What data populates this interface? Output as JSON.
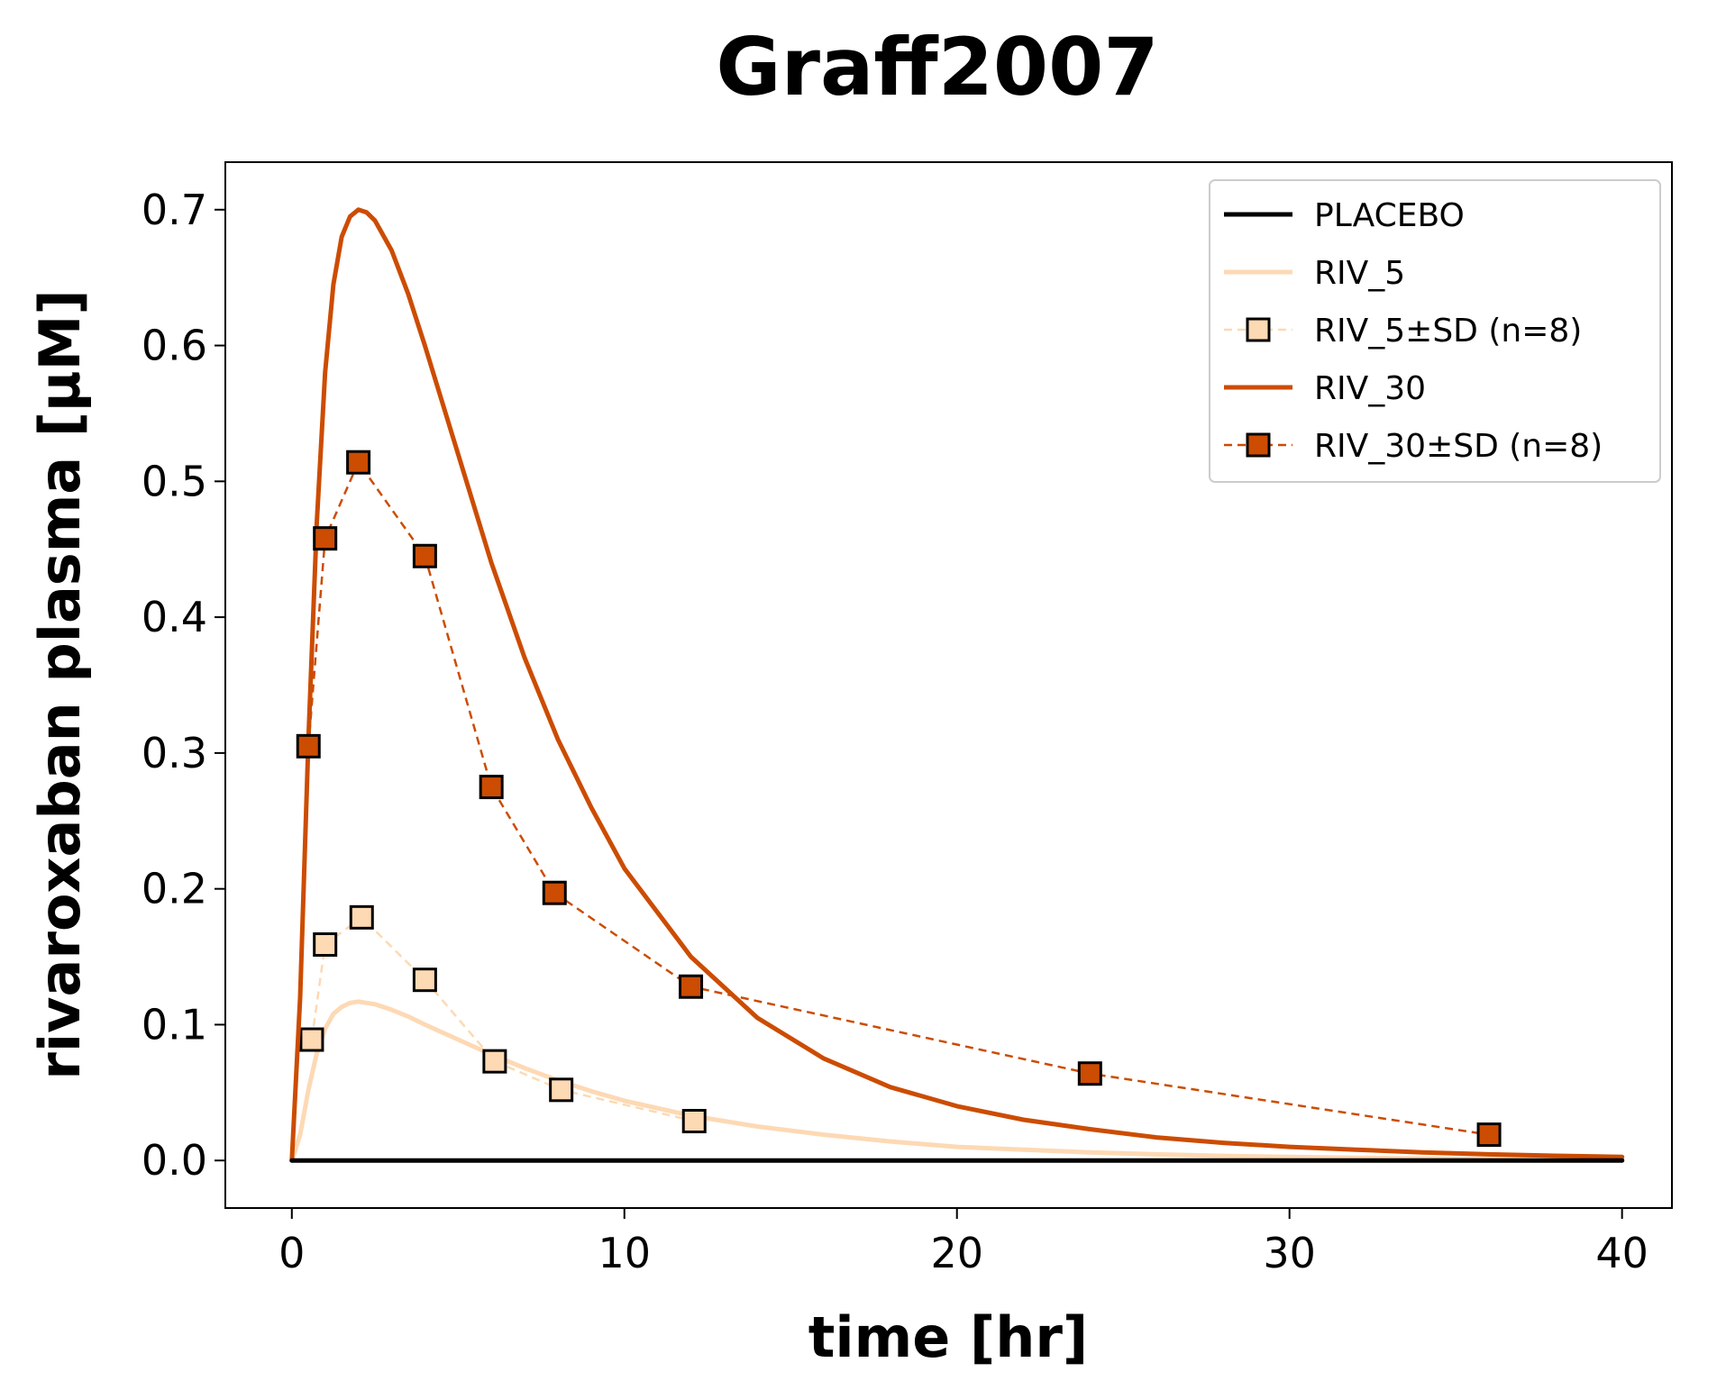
{
  "chart_data": {
    "type": "line",
    "title": "Graff2007",
    "xlabel": "time [hr]",
    "ylabel": "rivaroxaban plasma [µM]",
    "xlim": [
      -2,
      41.5
    ],
    "ylim": [
      -0.035,
      0.735
    ],
    "xticks": [
      0,
      10,
      20,
      30,
      40
    ],
    "yticks": [
      0.0,
      0.1,
      0.2,
      0.3,
      0.4,
      0.5,
      0.6,
      0.7
    ],
    "grid": false,
    "legend_position": "top-right",
    "series": [
      {
        "name": "PLACEBO",
        "kind": "line",
        "color": "#000000",
        "x": [
          0,
          40
        ],
        "y": [
          0,
          0
        ]
      },
      {
        "name": "RIV_5",
        "kind": "line",
        "color": "#fdd9b4",
        "x": [
          0,
          0.25,
          0.5,
          0.75,
          1,
          1.25,
          1.5,
          1.75,
          2,
          2.25,
          2.5,
          3,
          3.5,
          4,
          5,
          6,
          7,
          8,
          9,
          10,
          12,
          14,
          16,
          18,
          20,
          22,
          24,
          26,
          28,
          30,
          32,
          34,
          36,
          38,
          40
        ],
        "y": [
          0,
          0.019,
          0.052,
          0.079,
          0.097,
          0.108,
          0.113,
          0.116,
          0.117,
          0.116,
          0.115,
          0.111,
          0.106,
          0.1,
          0.089,
          0.078,
          0.068,
          0.059,
          0.051,
          0.044,
          0.033,
          0.025,
          0.019,
          0.014,
          0.01,
          0.008,
          0.006,
          0.0045,
          0.0034,
          0.0026,
          0.002,
          0.0015,
          0.0011,
          0.0008,
          0.0006
        ]
      },
      {
        "name": "RIV_5±SD (n=8)",
        "kind": "markers",
        "color": "#fdd9b4",
        "x": [
          0.6,
          1,
          2.1,
          4,
          6.1,
          8.1,
          12.1
        ],
        "y": [
          0.089,
          0.159,
          0.179,
          0.133,
          0.073,
          0.052,
          0.029
        ]
      },
      {
        "name": "RIV_30",
        "kind": "line",
        "color": "#cc4c02",
        "x": [
          0,
          0.25,
          0.5,
          0.75,
          1,
          1.25,
          1.5,
          1.75,
          2,
          2.25,
          2.5,
          3,
          3.5,
          4,
          5,
          6,
          7,
          8,
          9,
          10,
          12,
          14,
          16,
          18,
          20,
          22,
          24,
          26,
          28,
          30,
          32,
          34,
          36,
          38,
          40
        ],
        "y": [
          0,
          0.12,
          0.31,
          0.47,
          0.58,
          0.645,
          0.68,
          0.695,
          0.7,
          0.698,
          0.692,
          0.67,
          0.638,
          0.6,
          0.52,
          0.44,
          0.37,
          0.31,
          0.26,
          0.215,
          0.15,
          0.105,
          0.075,
          0.054,
          0.04,
          0.03,
          0.023,
          0.017,
          0.013,
          0.01,
          0.008,
          0.006,
          0.0045,
          0.0035,
          0.0027
        ]
      },
      {
        "name": "RIV_30±SD (n=8)",
        "kind": "markers",
        "color": "#cc4c02",
        "x": [
          0.5,
          1,
          2,
          4,
          6,
          7.9,
          12,
          24,
          36
        ],
        "y": [
          0.305,
          0.458,
          0.514,
          0.445,
          0.275,
          0.197,
          0.128,
          0.064,
          0.019
        ]
      }
    ]
  }
}
